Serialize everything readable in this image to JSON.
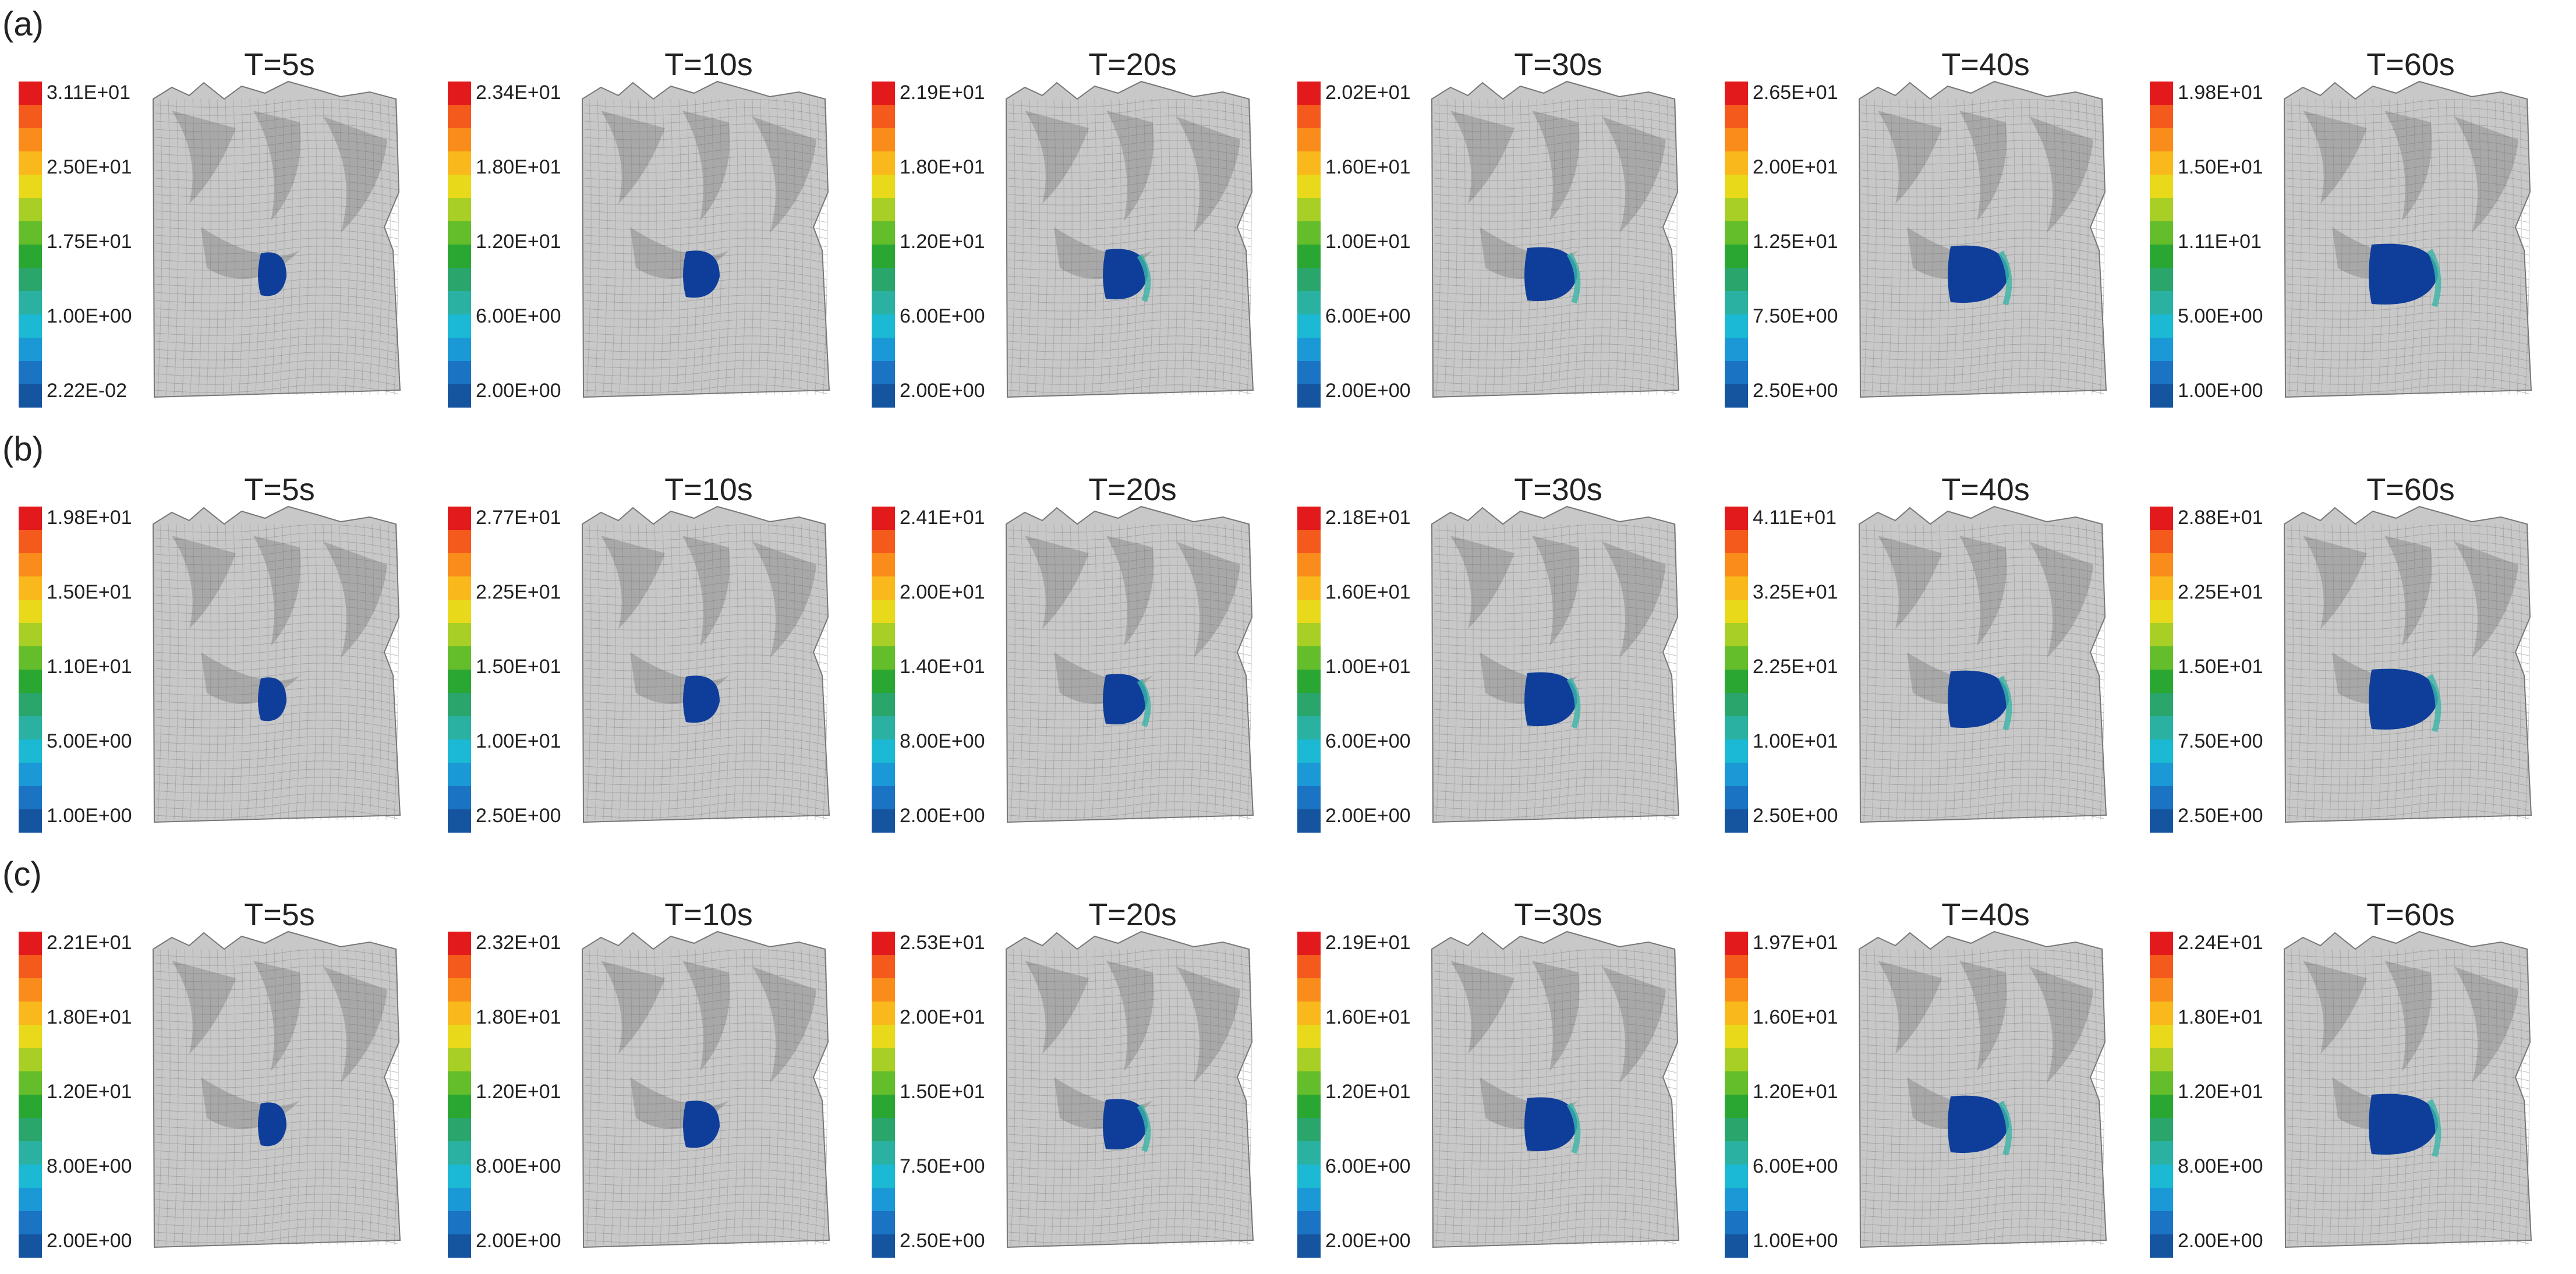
{
  "colors": {
    "scale": [
      "#e31a1c",
      "#f45a1c",
      "#f98c1a",
      "#f9b81b",
      "#e8da1a",
      "#a8cf26",
      "#64bd2b",
      "#2aa732",
      "#2aa56b",
      "#2ab1a2",
      "#1bb9d3",
      "#1b98d6",
      "#1b73c4",
      "#15549f"
    ],
    "wave": "#0f3e9a",
    "terrain": "#c8c8c8",
    "grid": "#8a8a8a"
  },
  "rows": [
    {
      "label": "(a)",
      "panels": [
        {
          "time": "T=5s",
          "ticks": [
            "3.11E+01",
            "2.50E+01",
            "1.75E+01",
            "1.00E+00",
            "2.22E-02"
          ]
        },
        {
          "time": "T=10s",
          "ticks": [
            "2.34E+01",
            "1.80E+01",
            "1.20E+01",
            "6.00E+00",
            "2.00E+00"
          ]
        },
        {
          "time": "T=20s",
          "ticks": [
            "2.19E+01",
            "1.80E+01",
            "1.20E+01",
            "6.00E+00",
            "2.00E+00"
          ]
        },
        {
          "time": "T=30s",
          "ticks": [
            "2.02E+01",
            "1.60E+01",
            "1.00E+01",
            "6.00E+00",
            "2.00E+00"
          ]
        },
        {
          "time": "T=40s",
          "ticks": [
            "2.65E+01",
            "2.00E+01",
            "1.25E+01",
            "7.50E+00",
            "2.50E+00"
          ]
        },
        {
          "time": "T=60s",
          "ticks": [
            "1.98E+01",
            "1.50E+01",
            "1.11E+01",
            "5.00E+00",
            "1.00E+00"
          ]
        }
      ]
    },
    {
      "label": "(b)",
      "panels": [
        {
          "time": "T=5s",
          "ticks": [
            "1.98E+01",
            "1.50E+01",
            "1.10E+01",
            "5.00E+00",
            "1.00E+00"
          ]
        },
        {
          "time": "T=10s",
          "ticks": [
            "2.77E+01",
            "2.25E+01",
            "1.50E+01",
            "1.00E+01",
            "2.50E+00"
          ]
        },
        {
          "time": "T=20s",
          "ticks": [
            "2.41E+01",
            "2.00E+01",
            "1.40E+01",
            "8.00E+00",
            "2.00E+00"
          ]
        },
        {
          "time": "T=30s",
          "ticks": [
            "2.18E+01",
            "1.60E+01",
            "1.00E+01",
            "6.00E+00",
            "2.00E+00"
          ]
        },
        {
          "time": "T=40s",
          "ticks": [
            "4.11E+01",
            "3.25E+01",
            "2.25E+01",
            "1.00E+01",
            "2.50E+00"
          ]
        },
        {
          "time": "T=60s",
          "ticks": [
            "2.88E+01",
            "2.25E+01",
            "1.50E+01",
            "7.50E+00",
            "2.50E+00"
          ]
        }
      ]
    },
    {
      "label": "(c)",
      "panels": [
        {
          "time": "T=5s",
          "ticks": [
            "2.21E+01",
            "1.80E+01",
            "1.20E+01",
            "8.00E+00",
            "2.00E+00"
          ]
        },
        {
          "time": "T=10s",
          "ticks": [
            "2.32E+01",
            "1.80E+01",
            "1.20E+01",
            "8.00E+00",
            "2.00E+00"
          ]
        },
        {
          "time": "T=20s",
          "ticks": [
            "2.53E+01",
            "2.00E+01",
            "1.50E+01",
            "7.50E+00",
            "2.50E+00"
          ]
        },
        {
          "time": "T=30s",
          "ticks": [
            "2.19E+01",
            "1.60E+01",
            "1.20E+01",
            "6.00E+00",
            "2.00E+00"
          ]
        },
        {
          "time": "T=40s",
          "ticks": [
            "1.97E+01",
            "1.60E+01",
            "1.20E+01",
            "6.00E+00",
            "1.00E+00"
          ]
        },
        {
          "time": "T=60s",
          "ticks": [
            "2.24E+01",
            "1.80E+01",
            "1.20E+01",
            "8.00E+00",
            "2.00E+00"
          ]
        }
      ]
    }
  ]
}
